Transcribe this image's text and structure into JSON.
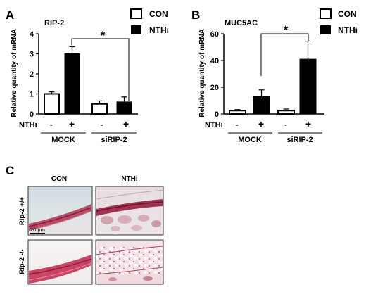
{
  "panels": {
    "A": {
      "label": "A"
    },
    "B": {
      "label": "B"
    },
    "C": {
      "label": "C"
    }
  },
  "legend": {
    "con": "CON",
    "nthi": "NTHi"
  },
  "treatment": {
    "row_label": "NTHi",
    "minus": "-",
    "plus": "+"
  },
  "groups": {
    "mock": "MOCK",
    "sirip2": "siRIP-2"
  },
  "significance": "*",
  "histology": {
    "columns": [
      "CON",
      "NTHi"
    ],
    "rows": [
      "Rip-2 +/+",
      "Rip-2 -/-"
    ],
    "scale_bar": "20 μm"
  },
  "colors": {
    "con_fill": "#ffffff",
    "nthi_fill": "#000000",
    "stroke": "#000000"
  },
  "chart_data": [
    {
      "panel": "A",
      "type": "bar",
      "title": "RIP-2",
      "ylabel": "Relative quantity of mRNA",
      "ylim": [
        0,
        4
      ],
      "yticks": [
        "0",
        "1",
        "2",
        "3",
        "4"
      ],
      "categories": [
        "MOCK -",
        "MOCK +",
        "siRIP-2 -",
        "siRIP-2 +"
      ],
      "values": [
        1.0,
        3.0,
        0.5,
        0.6
      ],
      "errors": [
        0.1,
        0.35,
        0.15,
        0.25
      ],
      "fills": [
        "con",
        "nthi",
        "con",
        "nthi"
      ],
      "significance": {
        "between": [
          1,
          3
        ],
        "label": "*"
      }
    },
    {
      "panel": "B",
      "type": "bar",
      "title": "MUC5AC",
      "ylabel": "Relative quantity of mRNA",
      "ylim": [
        0,
        60
      ],
      "yticks": [
        "0",
        "20",
        "40",
        "60"
      ],
      "categories": [
        "MOCK -",
        "MOCK +",
        "siRIP-2 -",
        "siRIP-2 +"
      ],
      "values": [
        2.5,
        13.0,
        2.5,
        41.0
      ],
      "errors": [
        0.8,
        5.0,
        1.2,
        13.0
      ],
      "fills": [
        "con",
        "nthi",
        "con",
        "nthi"
      ],
      "significance": {
        "between": [
          1,
          3
        ],
        "label": "*"
      }
    }
  ]
}
